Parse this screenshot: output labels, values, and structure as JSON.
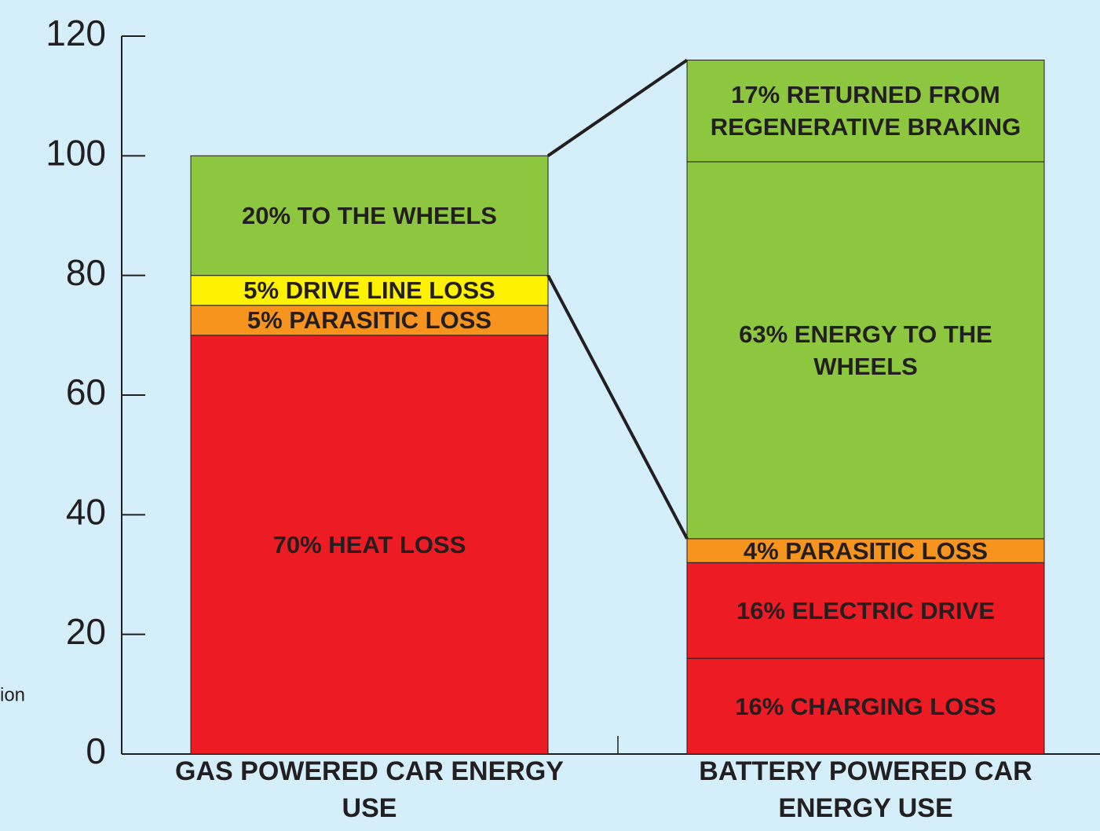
{
  "chart_data": {
    "type": "stacked-bar",
    "categories": [
      "GAS POWERED CAR ENERGY USE",
      "BATTERY POWERED CAR ENERGY USE"
    ],
    "segments": [
      [
        {
          "name": "70% HEAT LOSS",
          "value": 70,
          "color": "#ed1c24"
        },
        {
          "name": "5% PARASITIC LOSS",
          "value": 5,
          "color": "#f7941d"
        },
        {
          "name": "5% DRIVE LINE LOSS",
          "value": 5,
          "color": "#fff200"
        },
        {
          "name": "20% TO THE WHEELS",
          "value": 20,
          "color": "#8dc63f"
        }
      ],
      [
        {
          "name": "16% CHARGING LOSS",
          "value": 16,
          "color": "#ed1c24"
        },
        {
          "name": "16% ELECTRIC DRIVE",
          "value": 16,
          "color": "#ed1c24"
        },
        {
          "name": "4% PARASITIC LOSS",
          "value": 4,
          "color": "#f7941d"
        },
        {
          "name": "63% ENERGY TO THE WHEELS",
          "value": 63,
          "color": "#8dc63f"
        },
        {
          "name": "17% RETURNED FROM REGENERATIVE BRAKING",
          "value": 17,
          "color": "#8dc63f"
        }
      ]
    ],
    "ylim": [
      0,
      120
    ],
    "yticks": [
      0,
      20,
      40,
      60,
      80,
      100,
      120
    ],
    "annotation": "ion"
  }
}
